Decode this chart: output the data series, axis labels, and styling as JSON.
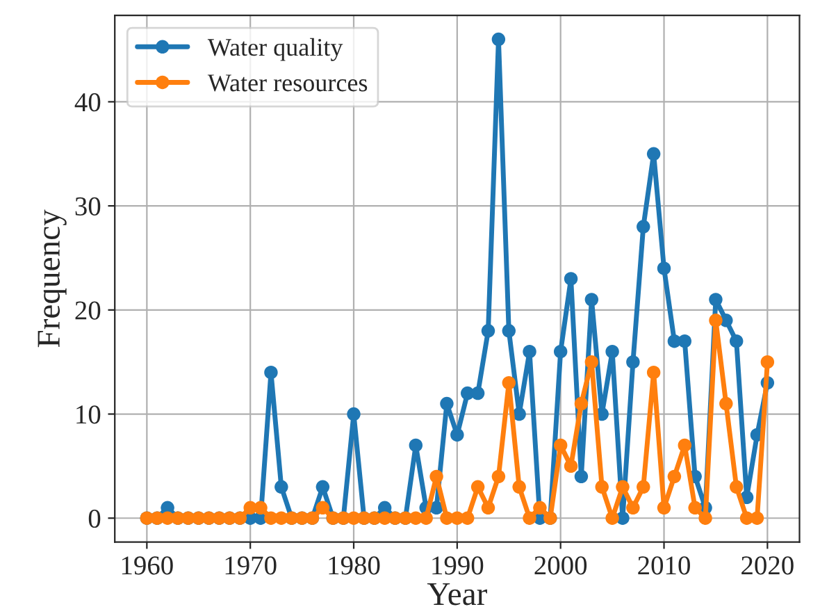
{
  "chart_data": {
    "type": "line",
    "xlabel": "Year",
    "ylabel": "Frequency",
    "x": [
      1960,
      1961,
      1962,
      1963,
      1964,
      1965,
      1966,
      1967,
      1968,
      1969,
      1970,
      1971,
      1972,
      1973,
      1974,
      1975,
      1976,
      1977,
      1978,
      1979,
      1980,
      1981,
      1982,
      1983,
      1984,
      1985,
      1986,
      1987,
      1988,
      1989,
      1990,
      1991,
      1992,
      1993,
      1994,
      1995,
      1996,
      1997,
      1998,
      1999,
      2000,
      2001,
      2002,
      2003,
      2004,
      2005,
      2006,
      2007,
      2008,
      2009,
      2010,
      2011,
      2012,
      2013,
      2014,
      2015,
      2016,
      2017,
      2018,
      2019,
      2020
    ],
    "series": [
      {
        "name": "Water quality",
        "color": "#1f77b4",
        "values": [
          0,
          0,
          1,
          0,
          0,
          0,
          0,
          0,
          0,
          0,
          0,
          0,
          14,
          3,
          0,
          0,
          0,
          3,
          0,
          0,
          10,
          0,
          0,
          1,
          0,
          0,
          7,
          1,
          1,
          11,
          8,
          12,
          12,
          18,
          46,
          18,
          10,
          16,
          0,
          0,
          16,
          23,
          4,
          21,
          10,
          16,
          0,
          15,
          28,
          35,
          24,
          17,
          17,
          4,
          1,
          21,
          19,
          17,
          2,
          8,
          13
        ]
      },
      {
        "name": "Water resources",
        "color": "#ff7f0e",
        "values": [
          0,
          0,
          0,
          0,
          0,
          0,
          0,
          0,
          0,
          0,
          1,
          1,
          0,
          0,
          0,
          0,
          0,
          1,
          0,
          0,
          0,
          0,
          0,
          0,
          0,
          0,
          0,
          0,
          4,
          0,
          0,
          0,
          3,
          1,
          4,
          13,
          3,
          0,
          1,
          0,
          7,
          5,
          11,
          15,
          3,
          0,
          3,
          1,
          3,
          14,
          1,
          4,
          7,
          1,
          0,
          19,
          11,
          3,
          0,
          0,
          15
        ]
      }
    ],
    "xlim": [
      1956.9,
      2023.1
    ],
    "ylim": [
      -2.3,
      48.3
    ],
    "xticks": [
      1960,
      1970,
      1980,
      1990,
      2000,
      2010,
      2020
    ],
    "yticks": [
      0,
      10,
      20,
      30,
      40
    ],
    "grid": true,
    "legend": "top left",
    "marker": "circle",
    "line_style": "solid"
  }
}
